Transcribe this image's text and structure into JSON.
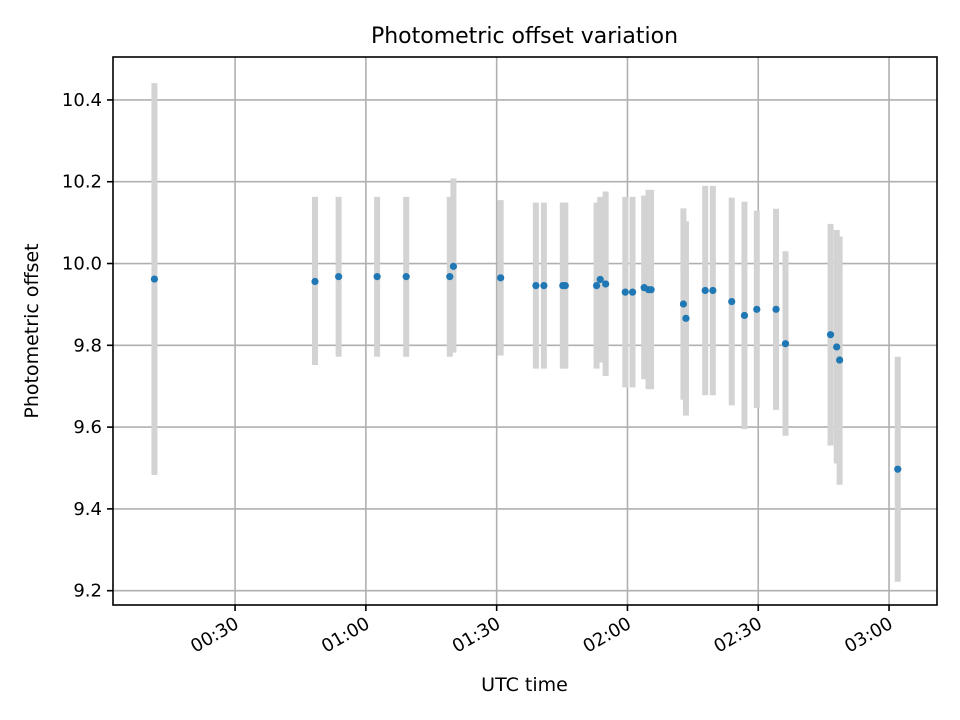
{
  "chart_data": {
    "type": "scatter",
    "title": "Photometric offset variation",
    "xlabel": "UTC time",
    "ylabel": "Photometric offset",
    "xlim": [
      "00:02",
      "03:11"
    ],
    "ylim": [
      9.165,
      10.505
    ],
    "grid": true,
    "x_ticks": [
      "00:30",
      "01:00",
      "01:30",
      "02:00",
      "02:30",
      "03:00"
    ],
    "y_ticks": [
      "9.2",
      "9.4",
      "9.6",
      "9.8",
      "10.0",
      "10.2",
      "10.4"
    ],
    "point_color": "#1f77b4",
    "errorbar_color": "#d3d3d3",
    "series": [
      {
        "points": [
          {
            "x": "00:11:30",
            "y": 9.962,
            "ylow": 9.483,
            "yhigh": 10.441
          },
          {
            "x": "00:48:20",
            "y": 9.956,
            "ylow": 9.752,
            "yhigh": 10.163
          },
          {
            "x": "00:53:45",
            "y": 9.968,
            "ylow": 9.772,
            "yhigh": 10.163
          },
          {
            "x": "01:02:35",
            "y": 9.968,
            "ylow": 9.772,
            "yhigh": 10.163
          },
          {
            "x": "01:09:15",
            "y": 9.968,
            "ylow": 9.772,
            "yhigh": 10.163
          },
          {
            "x": "01:19:15",
            "y": 9.968,
            "ylow": 9.772,
            "yhigh": 10.163
          },
          {
            "x": "01:20:05",
            "y": 9.993,
            "ylow": 9.782,
            "yhigh": 10.208
          },
          {
            "x": "01:30:55",
            "y": 9.965,
            "ylow": 9.775,
            "yhigh": 10.155
          },
          {
            "x": "01:39:00",
            "y": 9.946,
            "ylow": 9.743,
            "yhigh": 10.149
          },
          {
            "x": "01:40:50",
            "y": 9.946,
            "ylow": 9.743,
            "yhigh": 10.149
          },
          {
            "x": "01:45:10",
            "y": 9.946,
            "ylow": 9.743,
            "yhigh": 10.149
          },
          {
            "x": "01:45:45",
            "y": 9.946,
            "ylow": 9.743,
            "yhigh": 10.149
          },
          {
            "x": "01:52:55",
            "y": 9.946,
            "ylow": 9.743,
            "yhigh": 10.149
          },
          {
            "x": "01:53:45",
            "y": 9.961,
            "ylow": 9.758,
            "yhigh": 10.163
          },
          {
            "x": "01:55:00",
            "y": 9.95,
            "ylow": 9.725,
            "yhigh": 10.176
          },
          {
            "x": "01:59:30",
            "y": 9.93,
            "ylow": 9.697,
            "yhigh": 10.163
          },
          {
            "x": "02:01:10",
            "y": 9.93,
            "ylow": 9.697,
            "yhigh": 10.163
          },
          {
            "x": "02:03:50",
            "y": 9.941,
            "ylow": 9.717,
            "yhigh": 10.166
          },
          {
            "x": "02:04:50",
            "y": 9.936,
            "ylow": 9.693,
            "yhigh": 10.18
          },
          {
            "x": "02:05:25",
            "y": 9.936,
            "ylow": 9.693,
            "yhigh": 10.18
          },
          {
            "x": "02:12:50",
            "y": 9.901,
            "ylow": 9.667,
            "yhigh": 10.135
          },
          {
            "x": "02:13:25",
            "y": 9.866,
            "ylow": 9.628,
            "yhigh": 10.103
          },
          {
            "x": "02:17:50",
            "y": 9.934,
            "ylow": 9.678,
            "yhigh": 10.19
          },
          {
            "x": "02:19:35",
            "y": 9.934,
            "ylow": 9.678,
            "yhigh": 10.19
          },
          {
            "x": "02:23:55",
            "y": 9.907,
            "ylow": 9.653,
            "yhigh": 10.161
          },
          {
            "x": "02:26:50",
            "y": 9.873,
            "ylow": 9.595,
            "yhigh": 10.151
          },
          {
            "x": "02:29:40",
            "y": 9.888,
            "ylow": 9.647,
            "yhigh": 10.129
          },
          {
            "x": "02:34:05",
            "y": 9.888,
            "ylow": 9.642,
            "yhigh": 10.134
          },
          {
            "x": "02:36:15",
            "y": 9.804,
            "ylow": 9.579,
            "yhigh": 10.03
          },
          {
            "x": "02:46:35",
            "y": 9.826,
            "ylow": 9.555,
            "yhigh": 10.097
          },
          {
            "x": "02:48:00",
            "y": 9.796,
            "ylow": 9.511,
            "yhigh": 10.082
          },
          {
            "x": "02:48:40",
            "y": 9.764,
            "ylow": 9.459,
            "yhigh": 10.066
          },
          {
            "x": "03:02:00",
            "y": 9.497,
            "ylow": 9.222,
            "yhigh": 9.772
          }
        ]
      }
    ]
  }
}
